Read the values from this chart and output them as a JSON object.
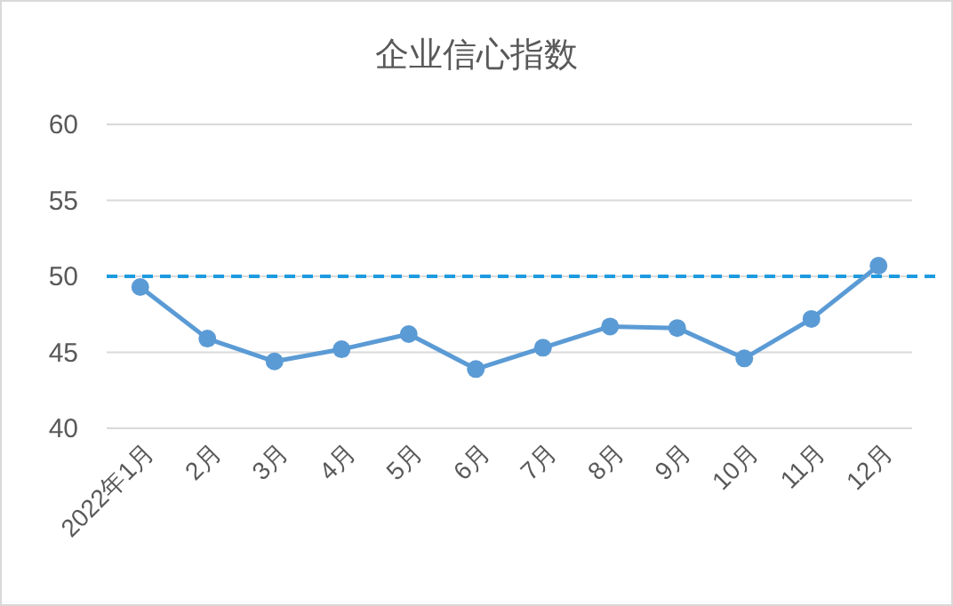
{
  "chart_data": {
    "type": "line",
    "title": "企业信心指数",
    "categories": [
      "2022年1月",
      "2月",
      "3月",
      "4月",
      "5月",
      "6月",
      "7月",
      "8月",
      "9月",
      "10月",
      "11月",
      "12月"
    ],
    "series": [
      {
        "color": "#5b9bd5",
        "values": [
          49.3,
          45.9,
          44.4,
          45.2,
          46.2,
          43.9,
          45.3,
          46.7,
          46.6,
          44.6,
          47.2,
          50.7
        ]
      }
    ],
    "ylim": [
      40,
      60
    ],
    "yticks": [
      40,
      45,
      50,
      55,
      60
    ],
    "grid": "y",
    "marker": "circle",
    "line_style": "solid",
    "ref_lines": [
      {
        "axis": "y",
        "value": 50,
        "color": "#1e9be0",
        "line_style": "dashed"
      }
    ]
  }
}
